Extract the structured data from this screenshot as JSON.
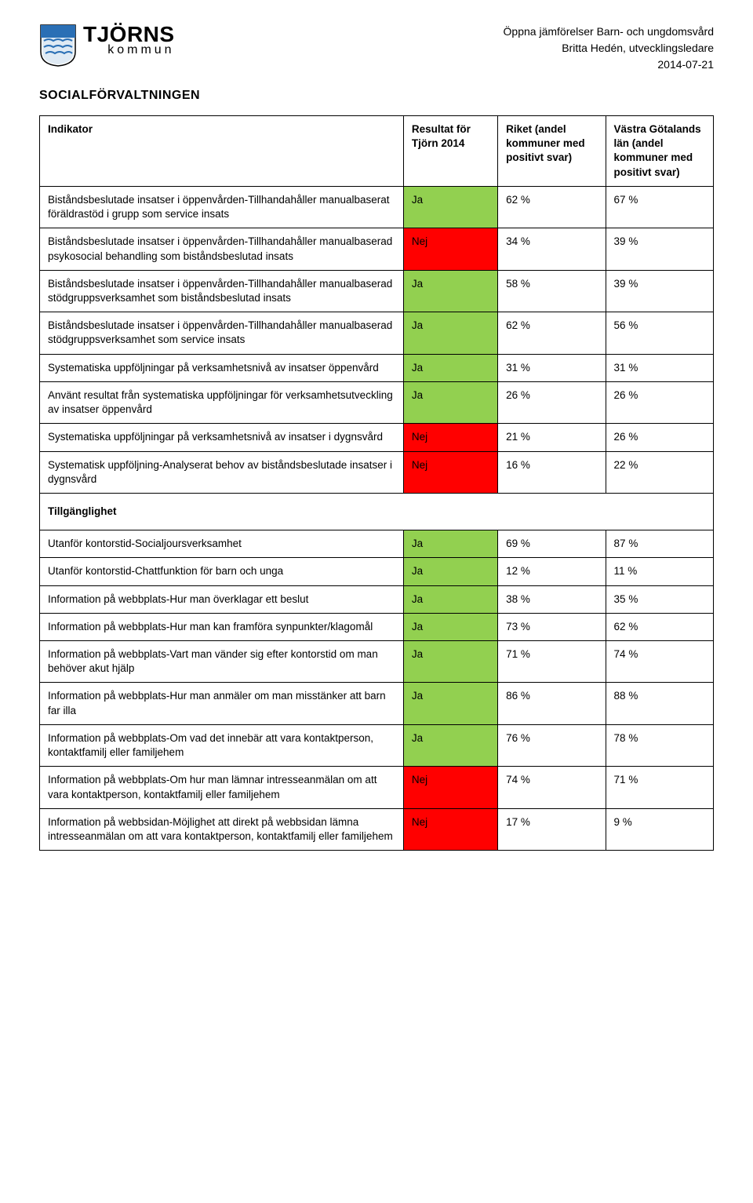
{
  "header": {
    "logo_title": "TJÖRNS",
    "logo_sub": "kommun",
    "right_line1": "Öppna jämförelser Barn- och ungdomsvård",
    "right_line2": "Britta Hedén, utvecklingsledare",
    "right_line3": "2014-07-21"
  },
  "section_title": "SOCIALFÖRVALTNINGEN",
  "colors": {
    "ja_bg": "#92d050",
    "nej_bg": "#ff0000",
    "border": "#000000",
    "text": "#000000",
    "bg": "#ffffff"
  },
  "table": {
    "head": {
      "indikator": "Indikator",
      "resultat": "Resultat för Tjörn 2014",
      "riket": "Riket (andel kommuner med positivt svar)",
      "vg": "Västra Götalands län (andel kommuner med positivt svar)"
    },
    "rows": [
      {
        "type": "data",
        "indikator": "Biståndsbeslutade insatser i öppenvården-Tillhandahåller manualbaserat föräldrastöd i grupp som service insats",
        "resultat": "Ja",
        "riket": "62 %",
        "vg": "67 %"
      },
      {
        "type": "data",
        "indikator": "Biståndsbeslutade insatser i öppenvården-Tillhandahåller manualbaserad psykosocial behandling som biståndsbeslutad insats",
        "resultat": "Nej",
        "riket": "34 %",
        "vg": "39 %"
      },
      {
        "type": "data",
        "indikator": "Biståndsbeslutade insatser i öppenvården-Tillhandahåller manualbaserad stödgruppsverksamhet som biståndsbeslutad insats",
        "resultat": "Ja",
        "riket": "58 %",
        "vg": "39 %"
      },
      {
        "type": "data",
        "indikator": "Biståndsbeslutade insatser i öppenvården-Tillhandahåller manualbaserad stödgruppsverksamhet som service insats",
        "resultat": "Ja",
        "riket": "62 %",
        "vg": "56 %"
      },
      {
        "type": "data",
        "indikator": "Systematiska uppföljningar på verksamhetsnivå av insatser öppenvård",
        "resultat": "Ja",
        "riket": "31 %",
        "vg": "31 %"
      },
      {
        "type": "data",
        "indikator": "Använt resultat från systematiska uppföljningar för verksamhetsutveckling av insatser öppenvård",
        "resultat": "Ja",
        "riket": "26 %",
        "vg": "26 %"
      },
      {
        "type": "data",
        "indikator": "Systematiska uppföljningar på verksamhetsnivå av insatser i dygnsvård",
        "resultat": "Nej",
        "riket": "21 %",
        "vg": "26 %"
      },
      {
        "type": "data",
        "indikator": "Systematisk uppföljning-Analyserat behov av biståndsbeslutade insatser i dygnsvård",
        "resultat": "Nej",
        "riket": "16 %",
        "vg": "22 %"
      },
      {
        "type": "section",
        "label": "Tillgänglighet"
      },
      {
        "type": "data",
        "indikator": "Utanför kontorstid-Socialjoursverksamhet",
        "resultat": "Ja",
        "riket": "69 %",
        "vg": "87 %"
      },
      {
        "type": "data",
        "indikator": "Utanför kontorstid-Chattfunktion för barn och unga",
        "resultat": "Ja",
        "riket": "12 %",
        "vg": "11 %"
      },
      {
        "type": "data",
        "indikator": "Information på webbplats-Hur man överklagar ett beslut",
        "resultat": "Ja",
        "riket": "38 %",
        "vg": "35 %"
      },
      {
        "type": "data",
        "indikator": "Information på webbplats-Hur man kan framföra synpunkter/klagomål",
        "resultat": "Ja",
        "riket": "73 %",
        "vg": "62 %"
      },
      {
        "type": "data",
        "indikator": "Information på webbplats-Vart man vänder sig efter kontorstid om man behöver akut hjälp",
        "resultat": "Ja",
        "riket": "71 %",
        "vg": "74 %"
      },
      {
        "type": "data",
        "indikator": "Information på webbplats-Hur man anmäler om man misstänker att barn far illa",
        "resultat": "Ja",
        "riket": "86 %",
        "vg": "88 %"
      },
      {
        "type": "data",
        "indikator": "Information på webbplats-Om vad det innebär att vara kontaktperson, kontaktfamilj eller familjehem",
        "resultat": "Ja",
        "riket": "76 %",
        "vg": "78 %"
      },
      {
        "type": "data",
        "indikator": "Information på webbplats-Om hur man lämnar intresseanmälan om att vara kontaktperson, kontaktfamilj eller familjehem",
        "resultat": "Nej",
        "riket": "74 %",
        "vg": "71 %"
      },
      {
        "type": "data",
        "indikator": "Information på webbsidan-Möjlighet att direkt på webbsidan lämna intresseanmälan om att vara kontaktperson, kontaktfamilj eller familjehem",
        "resultat": "Nej",
        "riket": "17 %",
        "vg": "9 %"
      }
    ]
  }
}
